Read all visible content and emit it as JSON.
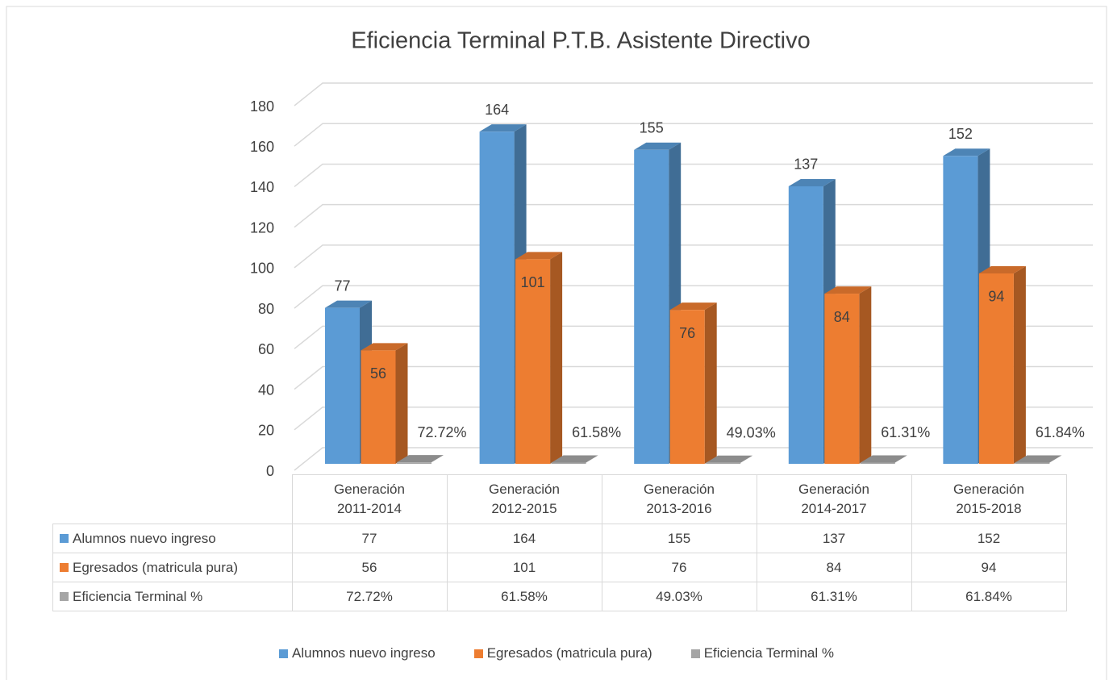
{
  "chart_data": {
    "type": "bar3d",
    "title": "Eficiencia Terminal P.T.B. Asistente Directivo",
    "categories": [
      "Generación 2011-2014",
      "Generación 2012-2015",
      "Generación 2013-2016",
      "Generación 2014-2017",
      "Generación 2015-2018"
    ],
    "series": [
      {
        "name": "Alumnos nuevo ingreso",
        "color": "#5b9bd5",
        "values": [
          77,
          164,
          155,
          137,
          152
        ]
      },
      {
        "name": "Egresados (matricula pura)",
        "color": "#ed7d31",
        "values": [
          56,
          101,
          76,
          84,
          94
        ]
      },
      {
        "name": "Eficiencia Terminal %",
        "color": "#a5a5a5",
        "values": [
          0.7272,
          0.6158,
          0.4903,
          0.6131,
          0.6184
        ],
        "value_labels": [
          "72.72%",
          "61.58%",
          "49.03%",
          "61.31%",
          "61.84%"
        ]
      }
    ],
    "ylim": [
      0,
      180
    ],
    "yticks": [
      0,
      20,
      40,
      60,
      80,
      100,
      120,
      140,
      160,
      180
    ],
    "grid": true
  }
}
